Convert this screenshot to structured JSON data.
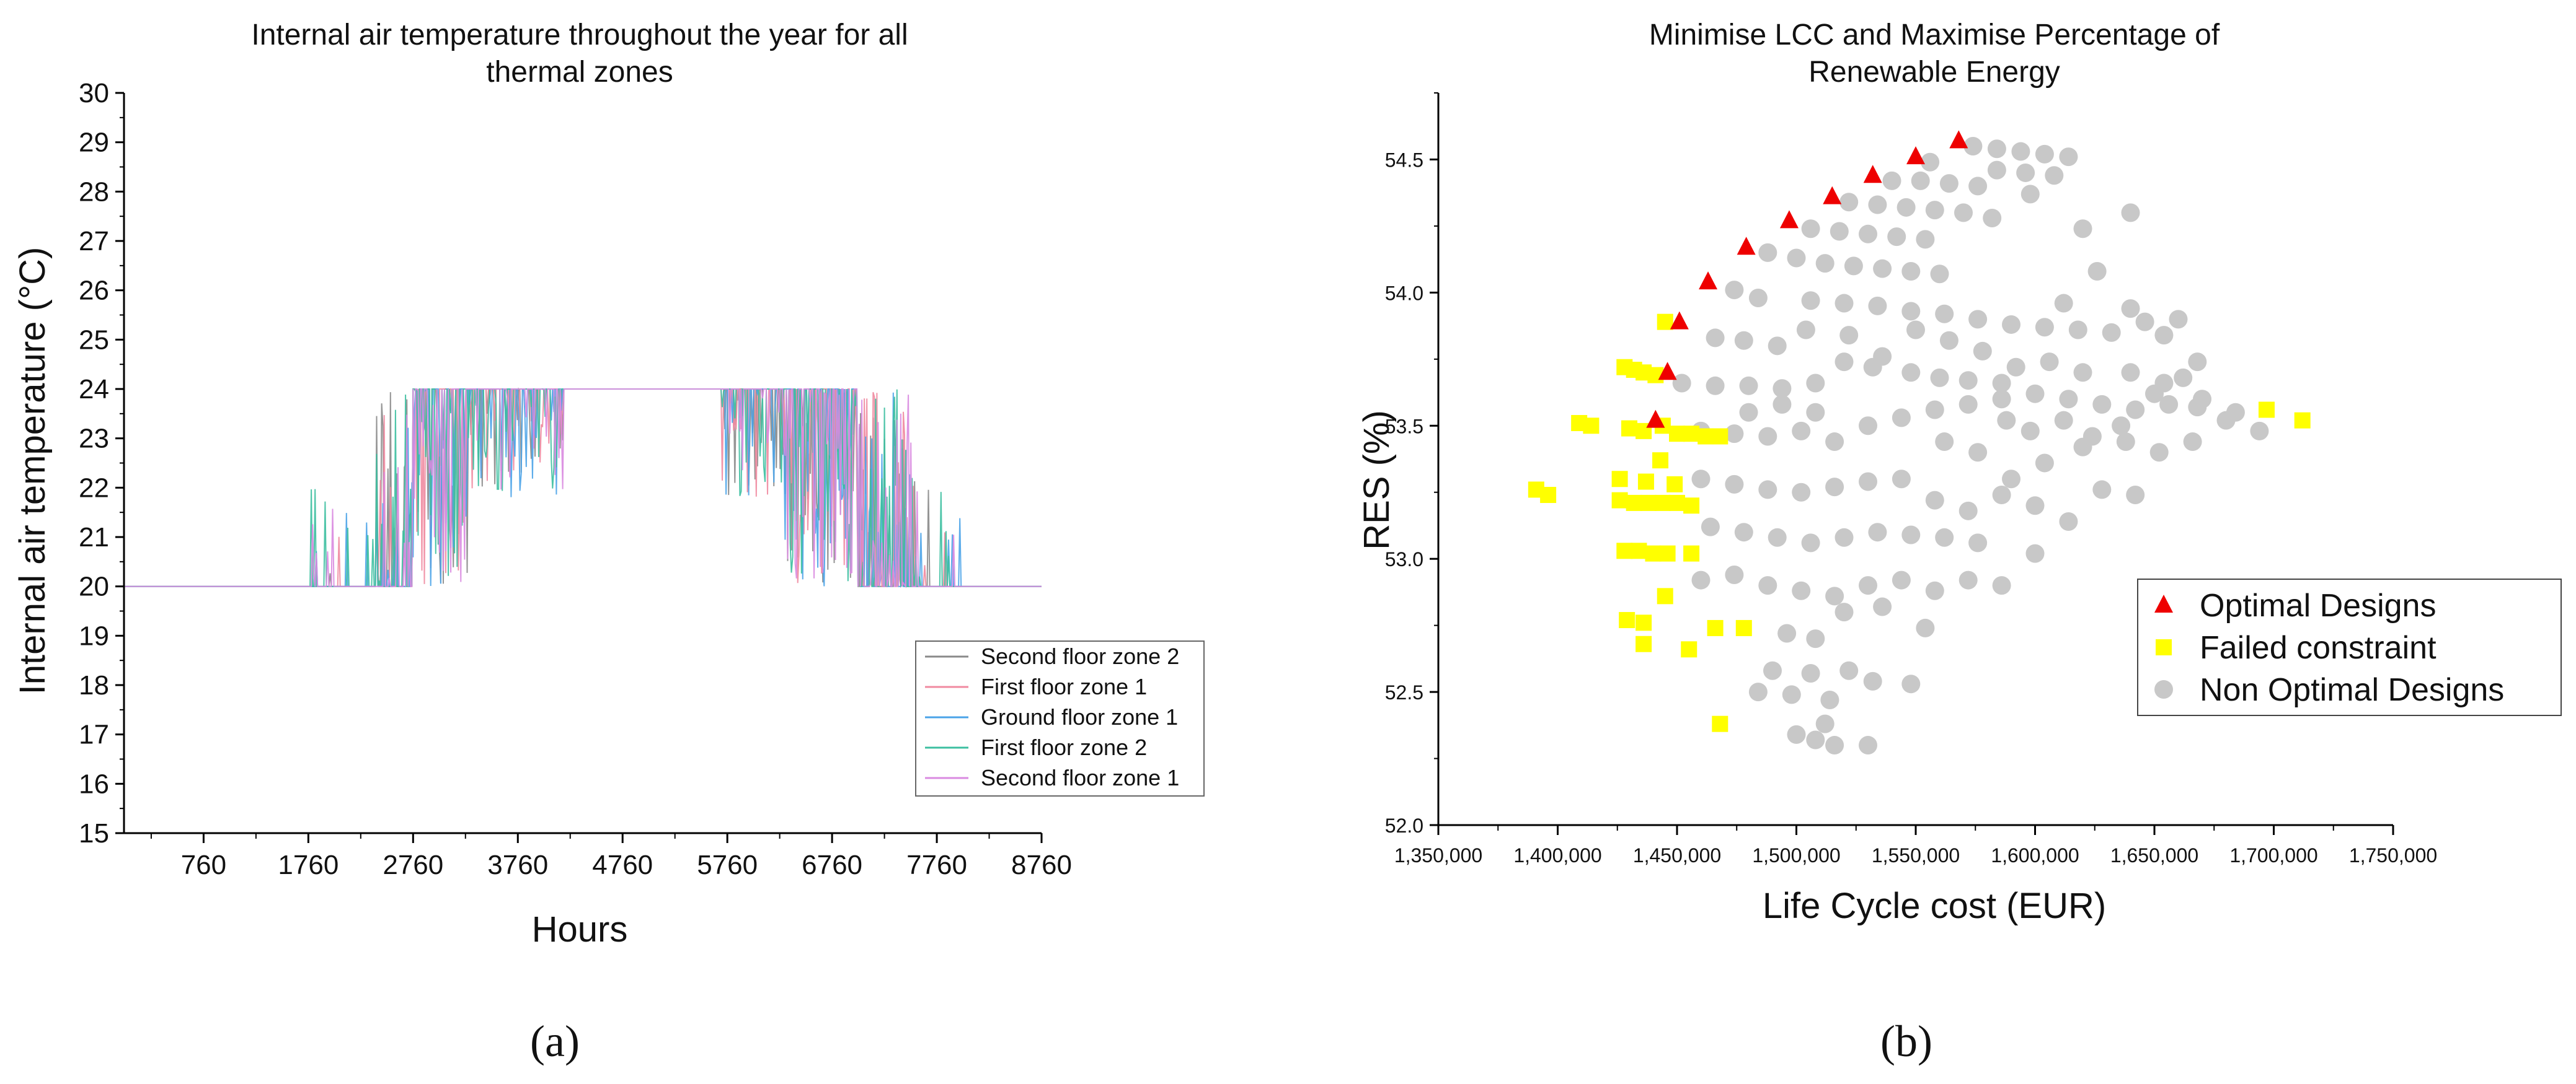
{
  "chart_data": [
    {
      "type": "line",
      "title_lines": [
        "Internal air temperature throughout the year for all",
        "thermal zones"
      ],
      "xlabel": "Hours",
      "ylabel": "Internal air temperature (°C)",
      "xlim": [
        0,
        8760
      ],
      "ylim": [
        15,
        30
      ],
      "x_ticks": [
        760,
        1760,
        2760,
        3760,
        4760,
        5760,
        6760,
        7760,
        8760
      ],
      "y_ticks": [
        15,
        16,
        17,
        18,
        19,
        20,
        21,
        22,
        23,
        24,
        25,
        26,
        27,
        28,
        29,
        30
      ],
      "baseline_temperature": 20,
      "setpoint_temperature": 24,
      "series": [
        {
          "name": "Second floor zone 2",
          "color": "#8a8a8a"
        },
        {
          "name": "First floor zone 1",
          "color": "#f08aa0"
        },
        {
          "name": "Ground floor zone 1",
          "color": "#4aa3e8"
        },
        {
          "name": "First floor zone 2",
          "color": "#3cbfa0"
        },
        {
          "name": "Second floor zone 1",
          "color": "#d98ae0"
        }
      ],
      "caption": "(a)"
    },
    {
      "type": "scatter",
      "title_lines": [
        "Minimise LCC and Maximise Percentage of",
        "Renewable Energy"
      ],
      "xlabel": "Life Cycle cost (EUR)",
      "ylabel": "RES (%)",
      "xlim": [
        1350000,
        1750000
      ],
      "ylim": [
        52.0,
        54.75
      ],
      "x_ticks": [
        1350000,
        1400000,
        1450000,
        1500000,
        1550000,
        1600000,
        1650000,
        1700000,
        1750000
      ],
      "x_tick_labels": [
        "1,350,000",
        "1,400,000",
        "1,450,000",
        "1,500,000",
        "1,550,000",
        "1,600,000",
        "1,650,000",
        "1,700,000",
        "1,750,000"
      ],
      "y_ticks": [
        52.0,
        52.5,
        53.0,
        53.5,
        54.0,
        54.5
      ],
      "y_tick_labels": [
        "52.0",
        "52.5",
        "53.0",
        "53.5",
        "54.0",
        "54.5"
      ],
      "series": [
        {
          "name": "Optimal Designs",
          "marker": "triangle",
          "color": "#ee0000",
          "points": [
            [
              1441000,
              53.52
            ],
            [
              1446000,
              53.7
            ],
            [
              1451000,
              53.89
            ],
            [
              1463000,
              54.04
            ],
            [
              1479000,
              54.17
            ],
            [
              1497000,
              54.27
            ],
            [
              1515000,
              54.36
            ],
            [
              1532000,
              54.44
            ],
            [
              1550000,
              54.51
            ],
            [
              1568000,
              54.57
            ]
          ]
        },
        {
          "name": "Failed constraint",
          "marker": "square",
          "color": "#ffff00",
          "points": [
            [
              1391000,
              53.26
            ],
            [
              1396000,
              53.24
            ],
            [
              1409000,
              53.51
            ],
            [
              1414000,
              53.5
            ],
            [
              1426000,
              53.3
            ],
            [
              1426000,
              53.22
            ],
            [
              1428000,
              53.72
            ],
            [
              1432000,
              53.71
            ],
            [
              1436000,
              53.7
            ],
            [
              1441000,
              53.69
            ],
            [
              1430000,
              53.49
            ],
            [
              1436000,
              53.48
            ],
            [
              1444000,
              53.5
            ],
            [
              1450000,
              53.47
            ],
            [
              1456000,
              53.47
            ],
            [
              1462000,
              53.46
            ],
            [
              1468000,
              53.46
            ],
            [
              1432000,
              53.21
            ],
            [
              1438000,
              53.21
            ],
            [
              1444000,
              53.21
            ],
            [
              1450000,
              53.21
            ],
            [
              1456000,
              53.2
            ],
            [
              1428000,
              53.03
            ],
            [
              1434000,
              53.03
            ],
            [
              1440000,
              53.02
            ],
            [
              1446000,
              53.02
            ],
            [
              1429000,
              52.77
            ],
            [
              1436000,
              52.76
            ],
            [
              1436000,
              52.68
            ],
            [
              1445000,
              52.86
            ],
            [
              1455000,
              52.66
            ],
            [
              1466000,
              52.74
            ],
            [
              1478000,
              52.74
            ],
            [
              1445000,
              53.89
            ],
            [
              1443000,
              53.37
            ],
            [
              1437000,
              53.29
            ],
            [
              1449000,
              53.28
            ],
            [
              1456000,
              53.02
            ],
            [
              1468000,
              52.38
            ],
            [
              1697000,
              53.56
            ],
            [
              1712000,
              53.52
            ]
          ]
        },
        {
          "name": "Non Optimal Designs",
          "marker": "circle",
          "color": "#c8c8c8",
          "points": [
            [
              1474000,
              54.01
            ],
            [
              1484000,
              53.98
            ],
            [
              1488000,
              54.15
            ],
            [
              1500000,
              54.13
            ],
            [
              1512000,
              54.11
            ],
            [
              1524000,
              54.1
            ],
            [
              1536000,
              54.09
            ],
            [
              1548000,
              54.08
            ],
            [
              1560000,
              54.07
            ],
            [
              1506000,
              54.24
            ],
            [
              1518000,
              54.23
            ],
            [
              1530000,
              54.22
            ],
            [
              1542000,
              54.21
            ],
            [
              1554000,
              54.2
            ],
            [
              1522000,
              54.34
            ],
            [
              1534000,
              54.33
            ],
            [
              1546000,
              54.32
            ],
            [
              1558000,
              54.31
            ],
            [
              1540000,
              54.42
            ],
            [
              1552000,
              54.42
            ],
            [
              1564000,
              54.41
            ],
            [
              1576000,
              54.4
            ],
            [
              1574000,
              54.55
            ],
            [
              1584000,
              54.54
            ],
            [
              1594000,
              54.53
            ],
            [
              1604000,
              54.52
            ],
            [
              1614000,
              54.51
            ],
            [
              1584000,
              54.46
            ],
            [
              1596000,
              54.45
            ],
            [
              1608000,
              54.44
            ],
            [
              1556000,
              54.49
            ],
            [
              1570000,
              54.3
            ],
            [
              1582000,
              54.28
            ],
            [
              1598000,
              54.37
            ],
            [
              1620000,
              54.24
            ],
            [
              1640000,
              54.3
            ],
            [
              1452000,
              53.66
            ],
            [
              1466000,
              53.65
            ],
            [
              1480000,
              53.65
            ],
            [
              1494000,
              53.64
            ],
            [
              1508000,
              53.66
            ],
            [
              1520000,
              53.74
            ],
            [
              1532000,
              53.72
            ],
            [
              1548000,
              53.7
            ],
            [
              1560000,
              53.68
            ],
            [
              1572000,
              53.67
            ],
            [
              1586000,
              53.66
            ],
            [
              1460000,
              53.48
            ],
            [
              1474000,
              53.47
            ],
            [
              1488000,
              53.46
            ],
            [
              1502000,
              53.48
            ],
            [
              1516000,
              53.44
            ],
            [
              1530000,
              53.5
            ],
            [
              1544000,
              53.53
            ],
            [
              1558000,
              53.56
            ],
            [
              1572000,
              53.58
            ],
            [
              1586000,
              53.6
            ],
            [
              1600000,
              53.62
            ],
            [
              1614000,
              53.6
            ],
            [
              1628000,
              53.58
            ],
            [
              1642000,
              53.56
            ],
            [
              1656000,
              53.58
            ],
            [
              1670000,
              53.6
            ],
            [
              1684000,
              53.55
            ],
            [
              1694000,
              53.48
            ],
            [
              1460000,
              53.3
            ],
            [
              1474000,
              53.28
            ],
            [
              1488000,
              53.26
            ],
            [
              1502000,
              53.25
            ],
            [
              1516000,
              53.27
            ],
            [
              1530000,
              53.29
            ],
            [
              1544000,
              53.3
            ],
            [
              1558000,
              53.22
            ],
            [
              1572000,
              53.18
            ],
            [
              1586000,
              53.24
            ],
            [
              1600000,
              53.2
            ],
            [
              1614000,
              53.14
            ],
            [
              1628000,
              53.26
            ],
            [
              1642000,
              53.24
            ],
            [
              1464000,
              53.12
            ],
            [
              1478000,
              53.1
            ],
            [
              1492000,
              53.08
            ],
            [
              1506000,
              53.06
            ],
            [
              1520000,
              53.08
            ],
            [
              1534000,
              53.1
            ],
            [
              1548000,
              53.09
            ],
            [
              1562000,
              53.08
            ],
            [
              1576000,
              53.06
            ],
            [
              1460000,
              52.92
            ],
            [
              1474000,
              52.94
            ],
            [
              1488000,
              52.9
            ],
            [
              1502000,
              52.88
            ],
            [
              1516000,
              52.86
            ],
            [
              1530000,
              52.9
            ],
            [
              1544000,
              52.92
            ],
            [
              1558000,
              52.88
            ],
            [
              1572000,
              52.92
            ],
            [
              1586000,
              52.9
            ],
            [
              1600000,
              53.02
            ],
            [
              1484000,
              52.5
            ],
            [
              1490000,
              52.58
            ],
            [
              1498000,
              52.49
            ],
            [
              1506000,
              52.57
            ],
            [
              1514000,
              52.47
            ],
            [
              1522000,
              52.58
            ],
            [
              1500000,
              52.34
            ],
            [
              1508000,
              52.32
            ],
            [
              1512000,
              52.38
            ],
            [
              1516000,
              52.3
            ],
            [
              1530000,
              52.3
            ],
            [
              1532000,
              52.54
            ],
            [
              1548000,
              52.53
            ],
            [
              1554000,
              52.74
            ],
            [
              1496000,
              52.72
            ],
            [
              1508000,
              52.7
            ],
            [
              1520000,
              52.8
            ],
            [
              1536000,
              52.82
            ],
            [
              1466000,
              53.83
            ],
            [
              1478000,
              53.82
            ],
            [
              1492000,
              53.8
            ],
            [
              1504000,
              53.86
            ],
            [
              1506000,
              53.97
            ],
            [
              1520000,
              53.96
            ],
            [
              1534000,
              53.95
            ],
            [
              1548000,
              53.93
            ],
            [
              1562000,
              53.92
            ],
            [
              1576000,
              53.9
            ],
            [
              1590000,
              53.88
            ],
            [
              1604000,
              53.87
            ],
            [
              1618000,
              53.86
            ],
            [
              1632000,
              53.85
            ],
            [
              1646000,
              53.89
            ],
            [
              1660000,
              53.9
            ],
            [
              1612000,
              53.96
            ],
            [
              1626000,
              54.08
            ],
            [
              1640000,
              53.94
            ],
            [
              1654000,
              53.84
            ],
            [
              1668000,
              53.74
            ],
            [
              1662000,
              53.68
            ],
            [
              1650000,
              53.62
            ],
            [
              1636000,
              53.5
            ],
            [
              1620000,
              53.42
            ],
            [
              1604000,
              53.36
            ],
            [
              1590000,
              53.3
            ],
            [
              1576000,
              53.4
            ],
            [
              1562000,
              53.44
            ],
            [
              1620000,
              53.7
            ],
            [
              1606000,
              53.74
            ],
            [
              1592000,
              53.72
            ],
            [
              1578000,
              53.78
            ],
            [
              1564000,
              53.82
            ],
            [
              1550000,
              53.86
            ],
            [
              1536000,
              53.76
            ],
            [
              1522000,
              53.84
            ],
            [
              1508000,
              53.55
            ],
            [
              1494000,
              53.58
            ],
            [
              1480000,
              53.55
            ],
            [
              1640000,
              53.7
            ],
            [
              1654000,
              53.66
            ],
            [
              1668000,
              53.57
            ],
            [
              1680000,
              53.52
            ],
            [
              1588000,
              53.52
            ],
            [
              1598000,
              53.48
            ],
            [
              1612000,
              53.52
            ],
            [
              1624000,
              53.46
            ],
            [
              1638000,
              53.44
            ],
            [
              1652000,
              53.4
            ],
            [
              1666000,
              53.44
            ]
          ]
        }
      ],
      "legend": {
        "position": "right"
      },
      "caption": "(b)"
    }
  ]
}
